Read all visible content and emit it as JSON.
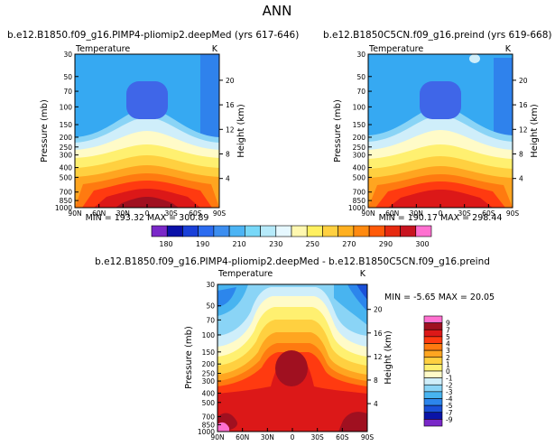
{
  "page_title": "ANN",
  "chart_data": [
    {
      "type": "heatmap",
      "title": "b.e12.B1850.f09_g16.PIMP4-pliomip2.deepMed (yrs 617-646)",
      "left_subtitle": "Temperature",
      "right_subtitle": "K",
      "ylabel": "Pressure (mb)",
      "ylabel_right": "Height (km)",
      "x_ticks": [
        "90N",
        "60N",
        "30N",
        "0",
        "30S",
        "60S",
        "90S"
      ],
      "y_ticks": [
        "30",
        "50",
        "70",
        "100",
        "150",
        "200",
        "250",
        "300",
        "400",
        "500",
        "700",
        "850",
        "1000"
      ],
      "height_ticks": [
        "20",
        "16",
        "12",
        "8",
        "4"
      ],
      "min_max": "MIN = 193.32   MAX = 300.89",
      "field_range": [
        193.32,
        300.89
      ]
    },
    {
      "type": "heatmap",
      "title": "b.e12.B1850C5CN.f09_g16.preind (yrs 619-668)",
      "left_subtitle": "Temperature",
      "right_subtitle": "K",
      "ylabel": "Pressure (mb)",
      "ylabel_right": "Height (km)",
      "x_ticks": [
        "90N",
        "60N",
        "30N",
        "0",
        "30S",
        "60S",
        "90S"
      ],
      "y_ticks": [
        "30",
        "50",
        "70",
        "100",
        "150",
        "200",
        "250",
        "300",
        "400",
        "500",
        "700",
        "850",
        "1000"
      ],
      "height_ticks": [
        "20",
        "16",
        "12",
        "8",
        "4"
      ],
      "min_max": "MIN = 190.17   MAX = 298.44",
      "field_range": [
        190.17,
        298.44
      ]
    },
    {
      "type": "heatmap",
      "title": "b.e12.B1850.f09_g16.PIMP4-pliomip2.deepMed - b.e12.B1850C5CN.f09_g16.preind",
      "left_subtitle": "Temperature",
      "right_subtitle": "K",
      "ylabel": "Pressure (mb)",
      "ylabel_right": "Height (km)",
      "x_ticks": [
        "90N",
        "60N",
        "30N",
        "0",
        "30S",
        "60S",
        "90S"
      ],
      "y_ticks": [
        "30",
        "50",
        "70",
        "100",
        "150",
        "200",
        "250",
        "300",
        "400",
        "500",
        "700",
        "850",
        "1000"
      ],
      "height_ticks": [
        "20",
        "16",
        "12",
        "8",
        "4"
      ],
      "min_max": "MIN = -5.65   MAX = 20.05",
      "field_range": [
        -5.65,
        20.05
      ]
    }
  ],
  "colorbar_top": {
    "labels": [
      "180",
      "190",
      "210",
      "230",
      "250",
      "270",
      "290",
      "300"
    ],
    "colors": [
      "#7a28c8",
      "#0a10a8",
      "#1a40d8",
      "#2c6cf0",
      "#3c8ef0",
      "#4cb4f4",
      "#78d8f8",
      "#b6eafa",
      "#e6f8ff",
      "#fff8b0",
      "#fff060",
      "#ffd040",
      "#ffb020",
      "#ff8a10",
      "#ff5a08",
      "#e62a10",
      "#c81420",
      "#ff70d0"
    ]
  },
  "colorbar_diff": {
    "labels": [
      "9",
      "7",
      "5",
      "4",
      "3",
      "2",
      "1",
      "0",
      "-1",
      "-2",
      "-3",
      "-4",
      "-5",
      "-7",
      "-9"
    ],
    "colors": [
      "#ff70d0",
      "#a01020",
      "#dc1818",
      "#ff3a10",
      "#ff7a10",
      "#ffa520",
      "#ffd040",
      "#fff070",
      "#fffbc8",
      "#cfeefa",
      "#8ad4f6",
      "#48b4f0",
      "#2c86ec",
      "#1a50d8",
      "#0a14a8",
      "#7a28c8"
    ]
  },
  "colors": {
    "stratosphere": "#36a9f2",
    "cold_core": "#3f66e8"
  }
}
